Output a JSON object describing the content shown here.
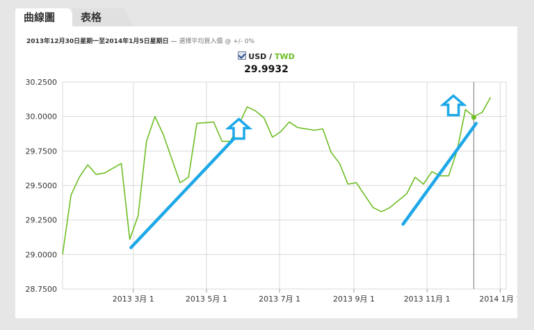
{
  "tabs": {
    "chart_label": "曲線圖",
    "table_label": "表格"
  },
  "subtitle": {
    "date_range": "2013年12月30日星期一至2014年1月5日星期日",
    "sep": " — ",
    "mode": "選擇平均買入價",
    "tail": " @ +/- 0%"
  },
  "legend": {
    "base": "USD",
    "slash": " / ",
    "quote": "TWD"
  },
  "current_value": "29.9932",
  "colors": {
    "line": "#6dbd22",
    "annotation": "#1ea8e8",
    "grid": "#d9d9d9",
    "axis": "#999999"
  },
  "chart_data": {
    "type": "line",
    "title": "",
    "xlabel": "",
    "ylabel": "",
    "ylim": [
      28.75,
      30.25
    ],
    "xlim": [
      "2013-01-01",
      "2014-01-06"
    ],
    "grid": true,
    "yticks": [
      "28.7500",
      "29.0000",
      "29.2500",
      "29.5000",
      "29.7500",
      "30.0000",
      "30.2500"
    ],
    "xticks": [
      {
        "label": "2013 3月 1",
        "date": "2013-03-01"
      },
      {
        "label": "2013 5月 1",
        "date": "2013-05-01"
      },
      {
        "label": "2013 7月 1",
        "date": "2013-07-01"
      },
      {
        "label": "2013 9月 1",
        "date": "2013-09-01"
      },
      {
        "label": "2013 11月 1",
        "date": "2013-11-01"
      },
      {
        "label": "2014 1月 1",
        "date": "2014-01-01"
      }
    ],
    "series": [
      {
        "name": "USD / TWD",
        "points": [
          [
            "2013-01-01",
            29.0
          ],
          [
            "2013-01-08",
            29.43
          ],
          [
            "2013-01-15",
            29.56
          ],
          [
            "2013-01-22",
            29.65
          ],
          [
            "2013-01-29",
            29.58
          ],
          [
            "2013-02-05",
            29.59
          ],
          [
            "2013-02-19",
            29.66
          ],
          [
            "2013-02-26",
            29.11
          ],
          [
            "2013-03-05",
            29.28
          ],
          [
            "2013-03-12",
            29.82
          ],
          [
            "2013-03-19",
            30.0
          ],
          [
            "2013-03-26",
            29.87
          ],
          [
            "2013-04-09",
            29.52
          ],
          [
            "2013-04-16",
            29.56
          ],
          [
            "2013-04-23",
            29.95
          ],
          [
            "2013-05-07",
            29.96
          ],
          [
            "2013-05-14",
            29.82
          ],
          [
            "2013-05-21",
            29.82
          ],
          [
            "2013-05-28",
            29.94
          ],
          [
            "2013-06-04",
            30.07
          ],
          [
            "2013-06-11",
            30.04
          ],
          [
            "2013-06-18",
            29.99
          ],
          [
            "2013-06-25",
            29.85
          ],
          [
            "2013-07-02",
            29.89
          ],
          [
            "2013-07-09",
            29.96
          ],
          [
            "2013-07-16",
            29.92
          ],
          [
            "2013-07-30",
            29.9
          ],
          [
            "2013-08-06",
            29.91
          ],
          [
            "2013-08-13",
            29.74
          ],
          [
            "2013-08-20",
            29.66
          ],
          [
            "2013-08-27",
            29.51
          ],
          [
            "2013-09-03",
            29.52
          ],
          [
            "2013-09-10",
            29.43
          ],
          [
            "2013-09-17",
            29.34
          ],
          [
            "2013-09-24",
            29.31
          ],
          [
            "2013-10-01",
            29.34
          ],
          [
            "2013-10-15",
            29.44
          ],
          [
            "2013-10-22",
            29.56
          ],
          [
            "2013-10-29",
            29.51
          ],
          [
            "2013-11-05",
            29.6
          ],
          [
            "2013-11-12",
            29.57
          ],
          [
            "2013-11-19",
            29.57
          ],
          [
            "2013-11-26",
            29.75
          ],
          [
            "2013-12-03",
            30.05
          ],
          [
            "2013-12-10",
            30.0
          ],
          [
            "2013-12-17",
            30.03
          ],
          [
            "2013-12-24",
            30.14
          ]
        ]
      }
    ],
    "marker": {
      "date": "2013-12-10",
      "value": 29.9932
    },
    "annotations": {
      "lines": [
        {
          "from": [
            "2013-02-27",
            29.05
          ],
          "to": [
            "2013-05-24",
            29.84
          ]
        },
        {
          "from": [
            "2013-10-12",
            29.22
          ],
          "to": [
            "2013-12-12",
            29.95
          ]
        }
      ],
      "arrows": [
        {
          "date": "2013-05-28",
          "value": 29.91
        },
        {
          "date": "2013-11-23",
          "value": 30.08
        }
      ]
    }
  }
}
